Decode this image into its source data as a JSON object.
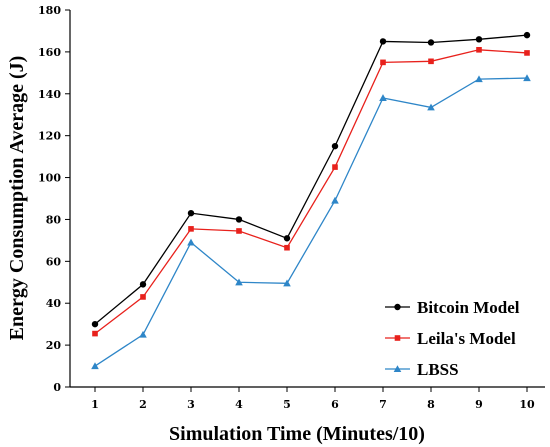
{
  "chart_data": {
    "type": "line",
    "title": "",
    "xlabel": "Simulation Time (Minutes/10)",
    "ylabel": "Energy Consumption Average (J)",
    "x": [
      1,
      2,
      3,
      4,
      5,
      6,
      7,
      8,
      9,
      10
    ],
    "xticks": [
      "1",
      "2",
      "3",
      "4",
      "5",
      "6",
      "7",
      "8",
      "9",
      "10"
    ],
    "ylim": [
      0,
      180
    ],
    "yticks": [
      0,
      20,
      40,
      60,
      80,
      100,
      120,
      140,
      160,
      180
    ],
    "grid": false,
    "legend_position": "bottom-right",
    "series": [
      {
        "name": "Bitcoin Model",
        "color": "#000000",
        "marker": "circle",
        "values": [
          30,
          49,
          83,
          80,
          71,
          115,
          165,
          164.5,
          166,
          168
        ]
      },
      {
        "name": "Leila's Model",
        "color": "#e8211c",
        "marker": "square",
        "values": [
          25.5,
          43,
          75.5,
          74.5,
          66.5,
          105,
          155,
          155.5,
          161,
          159.5
        ]
      },
      {
        "name": "LBSS",
        "color": "#2e86c8",
        "marker": "triangle",
        "values": [
          10,
          25,
          69,
          50,
          49.5,
          89,
          138,
          133.5,
          147,
          147.5
        ]
      }
    ]
  }
}
